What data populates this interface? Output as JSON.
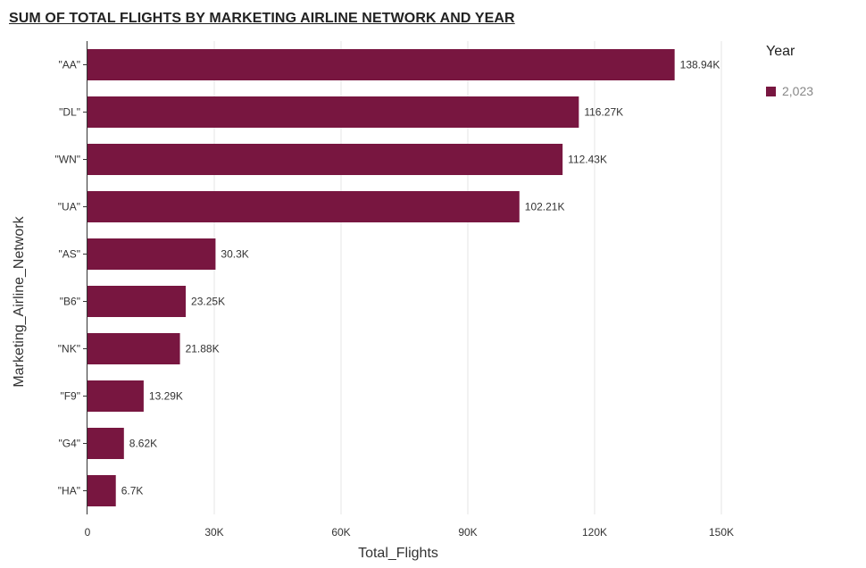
{
  "colors": {
    "bar": "#781640",
    "grid": "#e4e4e4",
    "axis": "#333333",
    "text": "#333333"
  },
  "chart_data": {
    "type": "bar",
    "orientation": "horizontal",
    "title": "SUM OF TOTAL FLIGHTS BY MARKETING AIRLINE NETWORK AND YEAR",
    "xlabel": "Total_Flights",
    "ylabel": "Marketing_Airline_Network",
    "categories": [
      "\"AA\"",
      "\"DL\"",
      "\"WN\"",
      "\"UA\"",
      "\"AS\"",
      "\"B6\"",
      "\"NK\"",
      "\"F9\"",
      "\"G4\"",
      "\"HA\""
    ],
    "series": [
      {
        "name": "2,023",
        "values": [
          138940,
          116270,
          112430,
          102210,
          30300,
          23250,
          21880,
          13290,
          8620,
          6700
        ],
        "labels": [
          "138.94K",
          "116.27K",
          "112.43K",
          "102.21K",
          "30.3K",
          "23.25K",
          "21.88K",
          "13.29K",
          "8.62K",
          "6.7K"
        ]
      }
    ],
    "xlim": [
      0,
      150000
    ],
    "xticks": [
      0,
      30000,
      60000,
      90000,
      120000,
      150000
    ],
    "xtick_labels": [
      "0",
      "30K",
      "60K",
      "90K",
      "120K",
      "150K"
    ],
    "grid": true,
    "legend": {
      "title": "Year",
      "placement": "right"
    }
  }
}
